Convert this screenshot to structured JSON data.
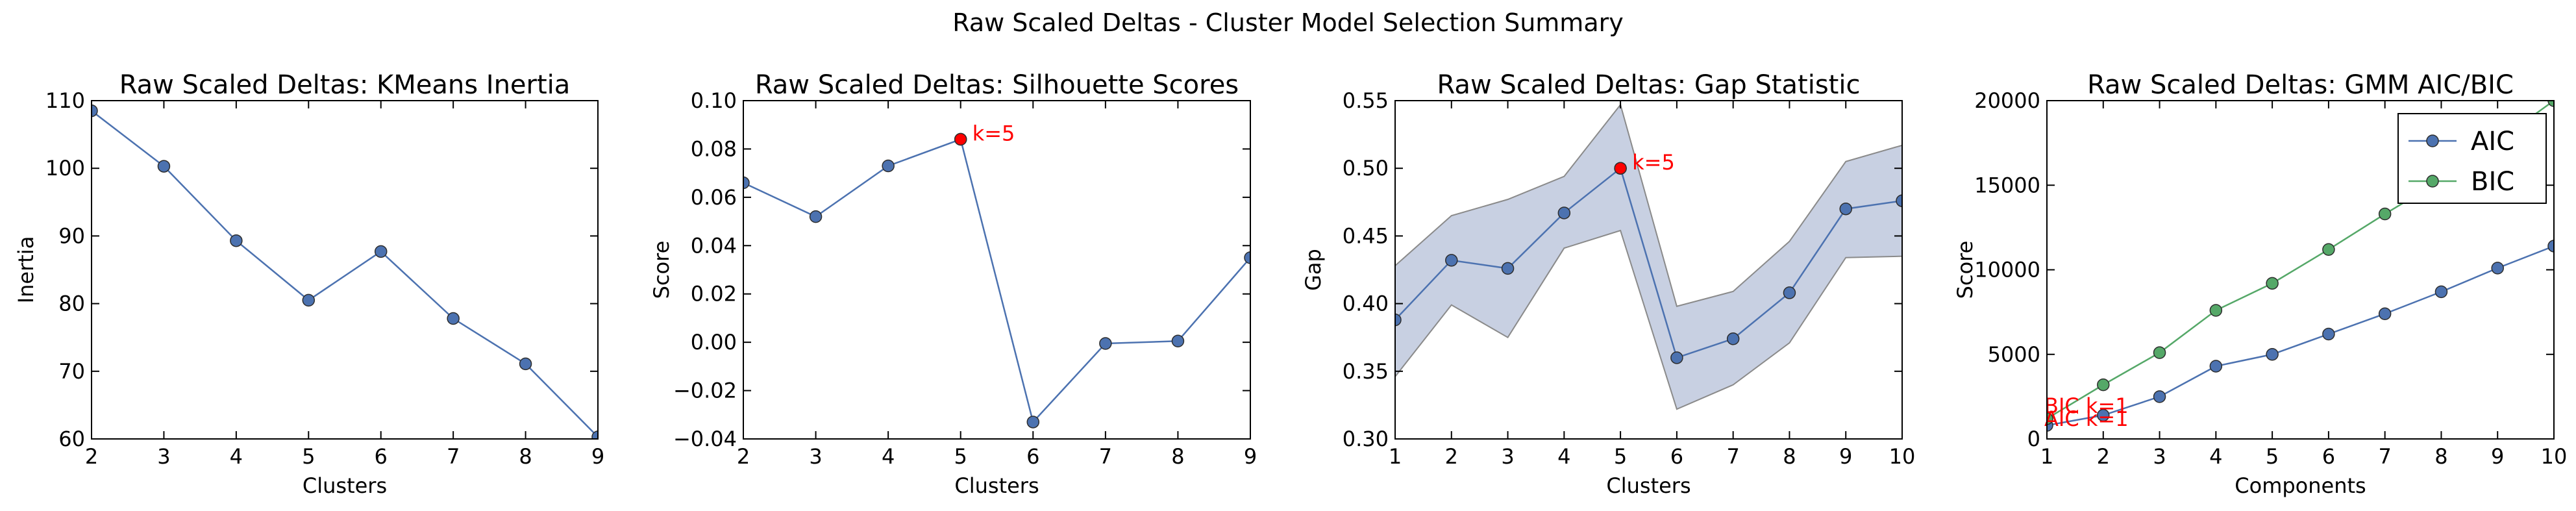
{
  "suptitle": "Raw Scaled Deltas - Cluster Model Selection Summary",
  "colors": {
    "blue": "#4c72b0",
    "green": "#55a868",
    "red": "#ff0000",
    "band": "#c8d0e2"
  },
  "chart_data": [
    {
      "type": "line",
      "title": "Raw Scaled Deltas: KMeans Inertia",
      "xlabel": "Clusters",
      "ylabel": "Inertia",
      "xlim": [
        2,
        9
      ],
      "ylim": [
        60,
        110
      ],
      "xticks": [
        "2",
        "3",
        "4",
        "5",
        "6",
        "7",
        "8",
        "9"
      ],
      "yticks": [
        "60",
        "70",
        "80",
        "90",
        "100",
        "110"
      ],
      "series": [
        {
          "x": [
            2,
            3,
            4,
            5,
            6,
            7,
            8,
            9
          ],
          "values": [
            108.5,
            100.3,
            89.3,
            80.5,
            87.7,
            77.8,
            71.1,
            60.3
          ]
        }
      ]
    },
    {
      "type": "line",
      "title": "Raw Scaled Deltas: Silhouette Scores",
      "xlabel": "Clusters",
      "ylabel": "Score",
      "xlim": [
        2,
        9
      ],
      "ylim": [
        -0.04,
        0.1
      ],
      "xticks": [
        "2",
        "3",
        "4",
        "5",
        "6",
        "7",
        "8",
        "9"
      ],
      "yticks": [
        "−0.04",
        "−0.02",
        "0.00",
        "0.02",
        "0.04",
        "0.06",
        "0.08",
        "0.10"
      ],
      "series": [
        {
          "x": [
            2,
            3,
            4,
            5,
            6,
            7,
            8,
            9
          ],
          "values": [
            0.066,
            0.052,
            0.073,
            0.084,
            -0.033,
            -0.0005,
            0.0005,
            0.035
          ]
        }
      ],
      "highlight": {
        "x": 5,
        "y": 0.084,
        "label": "k=5"
      }
    },
    {
      "type": "line",
      "title": "Raw Scaled Deltas: Gap Statistic",
      "xlabel": "Clusters",
      "ylabel": "Gap",
      "xlim": [
        1,
        10
      ],
      "ylim": [
        0.3,
        0.55
      ],
      "xticks": [
        "1",
        "2",
        "3",
        "4",
        "5",
        "6",
        "7",
        "8",
        "9",
        "10"
      ],
      "yticks": [
        "0.30",
        "0.35",
        "0.40",
        "0.45",
        "0.50",
        "0.55"
      ],
      "series": [
        {
          "x": [
            1,
            2,
            3,
            4,
            5,
            6,
            7,
            8,
            9,
            10
          ],
          "values": [
            0.388,
            0.432,
            0.426,
            0.467,
            0.5,
            0.36,
            0.374,
            0.408,
            0.47,
            0.476
          ]
        }
      ],
      "band": {
        "upper": [
          0.428,
          0.465,
          0.477,
          0.494,
          0.547,
          0.398,
          0.409,
          0.446,
          0.505,
          0.517
        ],
        "lower": [
          0.346,
          0.399,
          0.375,
          0.441,
          0.454,
          0.322,
          0.34,
          0.371,
          0.434,
          0.435
        ]
      },
      "highlight": {
        "x": 5,
        "y": 0.5,
        "label": "k=5"
      }
    },
    {
      "type": "line",
      "title": "Raw Scaled Deltas: GMM AIC/BIC",
      "xlabel": "Components",
      "ylabel": "Score",
      "xlim": [
        1,
        10
      ],
      "ylim": [
        0,
        20000
      ],
      "xticks": [
        "1",
        "2",
        "3",
        "4",
        "5",
        "6",
        "7",
        "8",
        "9",
        "10"
      ],
      "yticks": [
        "0",
        "5000",
        "10000",
        "15000",
        "20000"
      ],
      "legend_position": "top-right",
      "series": [
        {
          "name": "AIC",
          "color": "#4c72b0",
          "x": [
            1,
            2,
            3,
            4,
            5,
            6,
            7,
            8,
            9,
            10
          ],
          "values": [
            800,
            1400,
            2500,
            4300,
            5000,
            6200,
            7400,
            8700,
            10100,
            11400
          ]
        },
        {
          "name": "BIC",
          "color": "#55a868",
          "x": [
            1,
            2,
            3,
            4,
            5,
            6,
            7,
            8,
            9,
            10
          ],
          "values": [
            1200,
            3200,
            5100,
            7600,
            9200,
            11200,
            13300,
            15300,
            17600,
            20000
          ]
        }
      ],
      "annotations": [
        "BIC k=1",
        "AIC k=1"
      ]
    }
  ]
}
